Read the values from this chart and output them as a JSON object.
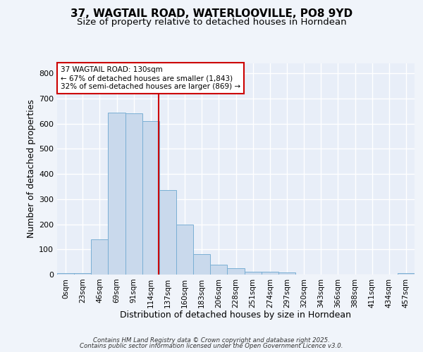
{
  "title1": "37, WAGTAIL ROAD, WATERLOOVILLE, PO8 9YD",
  "title2": "Size of property relative to detached houses in Horndean",
  "xlabel": "Distribution of detached houses by size in Horndean",
  "ylabel": "Number of detached properties",
  "bin_labels": [
    "0sqm",
    "23sqm",
    "46sqm",
    "69sqm",
    "91sqm",
    "114sqm",
    "137sqm",
    "160sqm",
    "183sqm",
    "206sqm",
    "228sqm",
    "251sqm",
    "274sqm",
    "297sqm",
    "320sqm",
    "343sqm",
    "366sqm",
    "388sqm",
    "411sqm",
    "434sqm",
    "457sqm"
  ],
  "bar_heights": [
    5,
    5,
    140,
    645,
    640,
    610,
    335,
    200,
    80,
    40,
    25,
    12,
    10,
    8,
    0,
    0,
    0,
    0,
    0,
    0,
    5
  ],
  "bar_color": "#c9d9ec",
  "bar_edge_color": "#7aafd4",
  "bar_width": 1.0,
  "vline_x": 5.47,
  "vline_color": "#cc0000",
  "annotation_text": "37 WAGTAIL ROAD: 130sqm\n← 67% of detached houses are smaller (1,843)\n32% of semi-detached houses are larger (869) →",
  "annotation_box_edgecolor": "#cc0000",
  "annotation_box_facecolor": "#ffffff",
  "ylim": [
    0,
    840
  ],
  "yticks": [
    0,
    100,
    200,
    300,
    400,
    500,
    600,
    700,
    800
  ],
  "bg_color": "#f0f4fa",
  "plot_bg_color": "#e8eef8",
  "grid_color": "#ffffff",
  "footer_line1": "Contains HM Land Registry data © Crown copyright and database right 2025.",
  "footer_line2": "Contains public sector information licensed under the Open Government Licence v3.0.",
  "title1_fontsize": 11,
  "title2_fontsize": 9.5,
  "xlabel_fontsize": 9,
  "ylabel_fontsize": 9,
  "tick_fontsize": 7.5,
  "ytick_fontsize": 8
}
